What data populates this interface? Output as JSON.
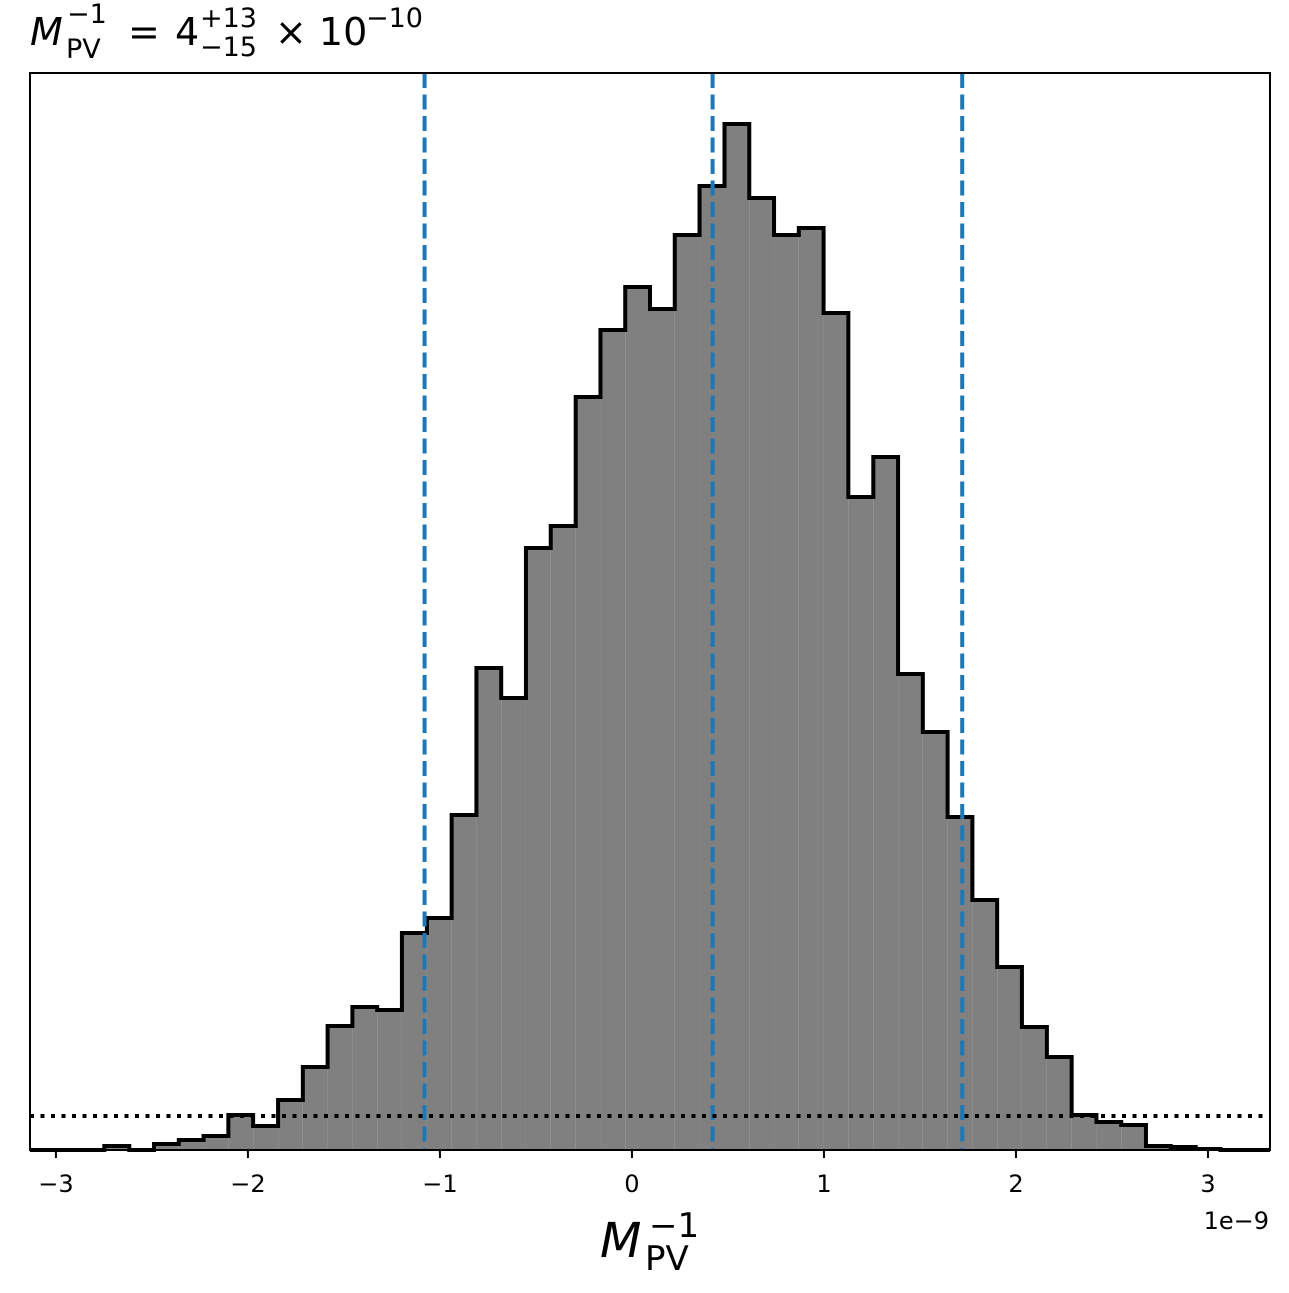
{
  "chart_data": {
    "type": "histogram",
    "title": {
      "symbol": "M",
      "superscript": "−1",
      "subscript": "PV",
      "equals": "=",
      "value": "4",
      "upper": "+13",
      "lower": "−15",
      "times": "× 10",
      "exponent": "−10"
    },
    "x_label": {
      "symbol": "M",
      "superscript": "−1",
      "subscript": "PV"
    },
    "x_offset_label": "1e−9",
    "bins": [
      -3.135,
      -3.006,
      -2.877,
      -2.748,
      -2.618,
      -2.489,
      -2.36,
      -2.231,
      -2.102,
      -1.973,
      -1.843,
      -1.714,
      -1.585,
      -1.456,
      -1.327,
      -1.198,
      -1.068,
      -0.939,
      -0.81,
      -0.681,
      -0.552,
      -0.423,
      -0.293,
      -0.164,
      -0.035,
      0.094,
      0.223,
      0.352,
      0.482,
      0.611,
      0.74,
      0.869,
      0.998,
      1.127,
      1.257,
      1.386,
      1.515,
      1.644,
      1.773,
      1.902,
      2.031,
      2.161,
      2.29,
      2.419,
      2.548,
      2.677,
      2.806,
      2.936,
      3.065,
      3.194,
      3.323
    ],
    "values": [
      0,
      0,
      0,
      4,
      0,
      6,
      10,
      14,
      35,
      24,
      50,
      83,
      124,
      143,
      140,
      217,
      232,
      335,
      482,
      452,
      602,
      624,
      753,
      820,
      863,
      841,
      915,
      964,
      1026,
      952,
      915,
      922,
      837,
      653,
      693,
      476,
      418,
      333,
      250,
      183,
      123,
      93,
      35,
      28,
      25,
      4,
      3,
      1,
      0,
      0
    ],
    "color": "#808080",
    "edge_color": "#000000",
    "vlines": [
      -1.08,
      0.42,
      1.72
    ],
    "vline_color": "#1f77b4",
    "hline": 34,
    "hline_color": "#000000",
    "xlim": [
      -3.135,
      3.323
    ],
    "ylim": [
      0,
      1077
    ],
    "xticks": [
      {
        "value": -3,
        "label": "−3"
      },
      {
        "value": -2,
        "label": "−2"
      },
      {
        "value": -1,
        "label": "−1"
      },
      0,
      1,
      2,
      3
    ]
  }
}
